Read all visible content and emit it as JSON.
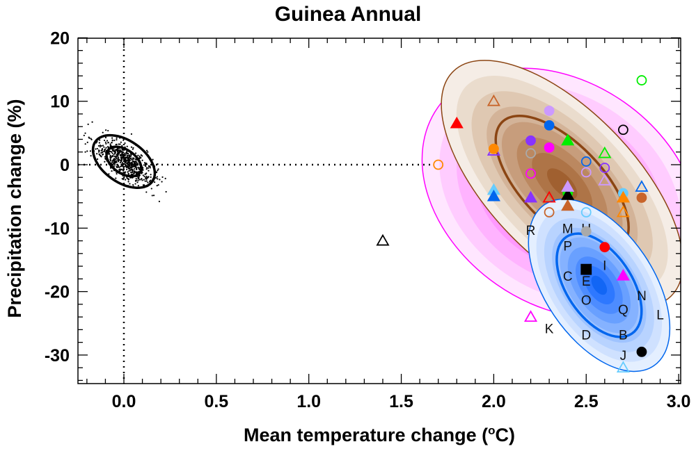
{
  "chart_data": {
    "type": "scatter",
    "title": "Guinea Annual",
    "xlabel_parts": [
      "Mean temperature change (",
      "o",
      "C)"
    ],
    "ylabel": "Precipitation change (%)",
    "xlim": [
      -0.25,
      3.0
    ],
    "ylim": [
      -34.5,
      20
    ],
    "xticks": [
      0.0,
      0.5,
      1.0,
      1.5,
      2.0,
      2.5,
      3.0
    ],
    "xtick_labels": [
      "0.0",
      "0.5",
      "1.0",
      "1.5",
      "2.0",
      "2.5",
      "3.0"
    ],
    "yticks": [
      20,
      10,
      0,
      -10,
      -20,
      -30
    ],
    "ytick_labels": [
      "20",
      "10",
      "0",
      "-10",
      "-20",
      "-30"
    ],
    "grid": false,
    "reference_lines": {
      "x": 0,
      "y": 0
    },
    "regions": [
      {
        "name": "pink-distribution",
        "center": [
          2.36,
          -4.5
        ],
        "color": "#ff00ff"
      },
      {
        "name": "brown-distribution",
        "center": [
          2.37,
          -3.0
        ],
        "color": "#8b4513"
      },
      {
        "name": "blue-distribution",
        "center": [
          2.57,
          -19.0
        ],
        "color": "#0066ee"
      },
      {
        "name": "natural-variability",
        "center": [
          0.0,
          0.5
        ],
        "color": "#000000"
      }
    ],
    "points": [
      {
        "x": 1.8,
        "y": 6.5,
        "shape": "triangle",
        "filled": true,
        "color": "#ff0000"
      },
      {
        "x": 1.7,
        "y": 0,
        "shape": "circle",
        "filled": false,
        "color": "#ff8800"
      },
      {
        "x": 2.0,
        "y": 10,
        "shape": "triangle",
        "filled": false,
        "color": "#c8642a"
      },
      {
        "x": 2.0,
        "y": 2.2,
        "shape": "triangle",
        "filled": false,
        "color": "#8833ff"
      },
      {
        "x": 2.0,
        "y": 2.5,
        "shape": "circle",
        "filled": true,
        "color": "#ff8800"
      },
      {
        "x": 2.0,
        "y": -4.0,
        "shape": "triangle",
        "filled": true,
        "color": "#66ccff"
      },
      {
        "x": 2.0,
        "y": -5.0,
        "shape": "triangle",
        "filled": true,
        "color": "#0066ee"
      },
      {
        "x": 2.3,
        "y": 8.5,
        "shape": "circle",
        "filled": true,
        "color": "#cc99ff"
      },
      {
        "x": 2.3,
        "y": 6.2,
        "shape": "circle",
        "filled": true,
        "color": "#0066ee"
      },
      {
        "x": 2.2,
        "y": 3.8,
        "shape": "circle",
        "filled": true,
        "color": "#8833ff"
      },
      {
        "x": 2.3,
        "y": 2.7,
        "shape": "circle",
        "filled": true,
        "color": "#ff00ff"
      },
      {
        "x": 2.2,
        "y": 1.8,
        "shape": "circle",
        "filled": false,
        "color": "#aaaaaa"
      },
      {
        "x": 2.2,
        "y": -1.4,
        "shape": "circle",
        "filled": false,
        "color": "#ff00ff"
      },
      {
        "x": 2.2,
        "y": -5.2,
        "shape": "triangle",
        "filled": true,
        "color": "#8833ff"
      },
      {
        "x": 2.3,
        "y": -5.2,
        "shape": "triangle",
        "filled": false,
        "color": "#ff0000"
      },
      {
        "x": 2.3,
        "y": -7.5,
        "shape": "circle",
        "filled": false,
        "color": "#c8642a"
      },
      {
        "x": 2.4,
        "y": 3.8,
        "shape": "triangle",
        "filled": true,
        "color": "#00ee00"
      },
      {
        "x": 2.4,
        "y": -6.5,
        "shape": "triangle",
        "filled": true,
        "color": "#c8642a"
      },
      {
        "x": 2.4,
        "y": -4.5,
        "shape": "circle",
        "filled": true,
        "color": "#00ee00"
      },
      {
        "x": 2.4,
        "y": -4.8,
        "shape": "triangle",
        "filled": true,
        "color": "#000000"
      },
      {
        "x": 2.4,
        "y": -3.5,
        "shape": "triangle",
        "filled": true,
        "color": "#cc99ff"
      },
      {
        "x": 2.5,
        "y": 0.5,
        "shape": "circle",
        "filled": false,
        "color": "#0066ee"
      },
      {
        "x": 2.5,
        "y": -1.2,
        "shape": "circle",
        "filled": false,
        "color": "#cc99ff"
      },
      {
        "x": 2.5,
        "y": -7.5,
        "shape": "circle",
        "filled": false,
        "color": "#66ccff"
      },
      {
        "x": 2.5,
        "y": -10.5,
        "shape": "circle",
        "filled": true,
        "color": "#aaaaaa"
      },
      {
        "x": 2.6,
        "y": 1.8,
        "shape": "triangle",
        "filled": false,
        "color": "#00ee00"
      },
      {
        "x": 2.6,
        "y": -0.5,
        "shape": "circle",
        "filled": false,
        "color": "#8833ff"
      },
      {
        "x": 2.6,
        "y": -2.5,
        "shape": "triangle",
        "filled": false,
        "color": "#cc99ff"
      },
      {
        "x": 2.7,
        "y": 5.5,
        "shape": "circle",
        "filled": false,
        "color": "#000000"
      },
      {
        "x": 2.8,
        "y": 13.3,
        "shape": "circle",
        "filled": false,
        "color": "#00ee00"
      },
      {
        "x": 2.7,
        "y": -4.5,
        "shape": "circle",
        "filled": true,
        "color": "#66ccff"
      },
      {
        "x": 2.7,
        "y": -5.2,
        "shape": "triangle",
        "filled": true,
        "color": "#ff8800"
      },
      {
        "x": 2.7,
        "y": -7.5,
        "shape": "triangle",
        "filled": false,
        "color": "#ff8800"
      },
      {
        "x": 2.8,
        "y": -3.5,
        "shape": "triangle",
        "filled": false,
        "color": "#0066ee"
      },
      {
        "x": 2.8,
        "y": -5.2,
        "shape": "circle",
        "filled": true,
        "color": "#c8642a"
      },
      {
        "x": 2.6,
        "y": -13.0,
        "shape": "circle",
        "filled": true,
        "color": "#ff0000"
      },
      {
        "x": 2.5,
        "y": -16.5,
        "shape": "square",
        "filled": true,
        "color": "#000000"
      },
      {
        "x": 2.7,
        "y": -17.5,
        "shape": "triangle",
        "filled": true,
        "color": "#ff00ff"
      },
      {
        "x": 2.8,
        "y": -29.5,
        "shape": "circle",
        "filled": true,
        "color": "#000000"
      },
      {
        "x": 2.7,
        "y": -32.0,
        "shape": "triangle",
        "filled": false,
        "color": "#66ccff"
      },
      {
        "x": 2.2,
        "y": -24.0,
        "shape": "triangle",
        "filled": false,
        "color": "#ff00ff"
      },
      {
        "x": 1.4,
        "y": -12.0,
        "shape": "triangle",
        "filled": false,
        "color": "#000000"
      }
    ],
    "letters": [
      {
        "text": "R",
        "x": 2.2,
        "y": -10.3
      },
      {
        "text": "M",
        "x": 2.4,
        "y": -10.0
      },
      {
        "text": "P",
        "x": 2.4,
        "y": -10.8
      },
      {
        "text": "U",
        "x": 2.5,
        "y": -10.0
      },
      {
        "text": "I",
        "x": 2.6,
        "y": -15.8
      },
      {
        "text": "C",
        "x": 2.4,
        "y": -17.5
      },
      {
        "text": "E",
        "x": 2.5,
        "y": -18.3
      },
      {
        "text": "O",
        "x": 2.5,
        "y": -20.2
      },
      {
        "text": "N",
        "x": 2.8,
        "y": -20.6
      },
      {
        "text": "Q",
        "x": 2.7,
        "y": -22.8
      },
      {
        "text": "L",
        "x": 2.9,
        "y": -23.6
      },
      {
        "text": "K",
        "x": 2.3,
        "y": -25.8
      },
      {
        "text": "D",
        "x": 2.5,
        "y": -26.8
      },
      {
        "text": "B",
        "x": 2.7,
        "y": -26.8
      },
      {
        "text": "J",
        "x": 2.7,
        "y": -30.0
      }
    ]
  }
}
